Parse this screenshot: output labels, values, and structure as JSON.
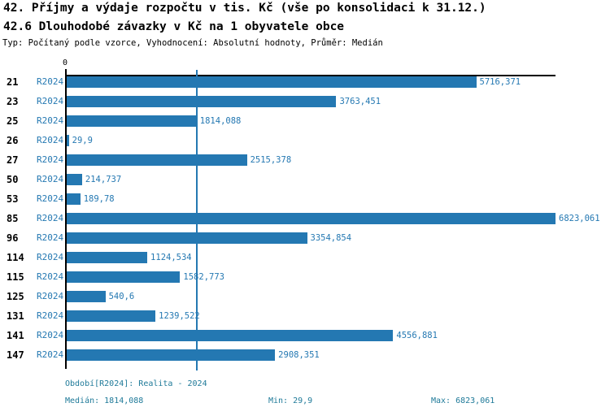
{
  "header": {
    "title_line1": "42. Příjmy a výdaje rozpočtu v tis. Kč (vše po konsolidaci k 31.12.)",
    "title_line2": "42.6 Dlouhodobé závazky v Kč na 1 obyvatele obce",
    "subtitle": "Typ: Počítaný podle vzorce, Vyhodnocení: Absolutní hodnoty, Průměr: Medián"
  },
  "chart_data": {
    "type": "bar",
    "orientation": "horizontal",
    "axis_zero_label": "0",
    "series_label": "R2024",
    "categories": [
      "21",
      "23",
      "25",
      "26",
      "27",
      "50",
      "53",
      "85",
      "96",
      "114",
      "115",
      "125",
      "131",
      "141",
      "147"
    ],
    "values": [
      5716.371,
      3763.451,
      1814.088,
      29.9,
      2515.378,
      214.737,
      189.78,
      6823.061,
      3354.854,
      1124.534,
      1582.773,
      540.6,
      1239.522,
      4556.881,
      2908.351
    ],
    "value_labels": [
      "5716,371",
      "3763,451",
      "1814,088",
      "29,9",
      "2515,378",
      "214,737",
      "189,78",
      "6823,061",
      "3354,854",
      "1124,534",
      "1582,773",
      "540,6",
      "1239,522",
      "4556,881",
      "2908,351"
    ],
    "xlim": [
      0,
      6823.061
    ],
    "median_line_value": 1814.088,
    "grid": "off",
    "colors": {
      "bar": "#2478b2",
      "median_line": "#2478b2",
      "series_text": "#2478b2",
      "value_text": "#2478b2",
      "footer_text": "#1f7a99",
      "title_text": "#000000"
    }
  },
  "footer": {
    "period": "Období[R2024]: Realita - 2024",
    "median": "Medián: 1814,088",
    "min": "Min: 29,9",
    "max": "Max: 6823,061"
  }
}
